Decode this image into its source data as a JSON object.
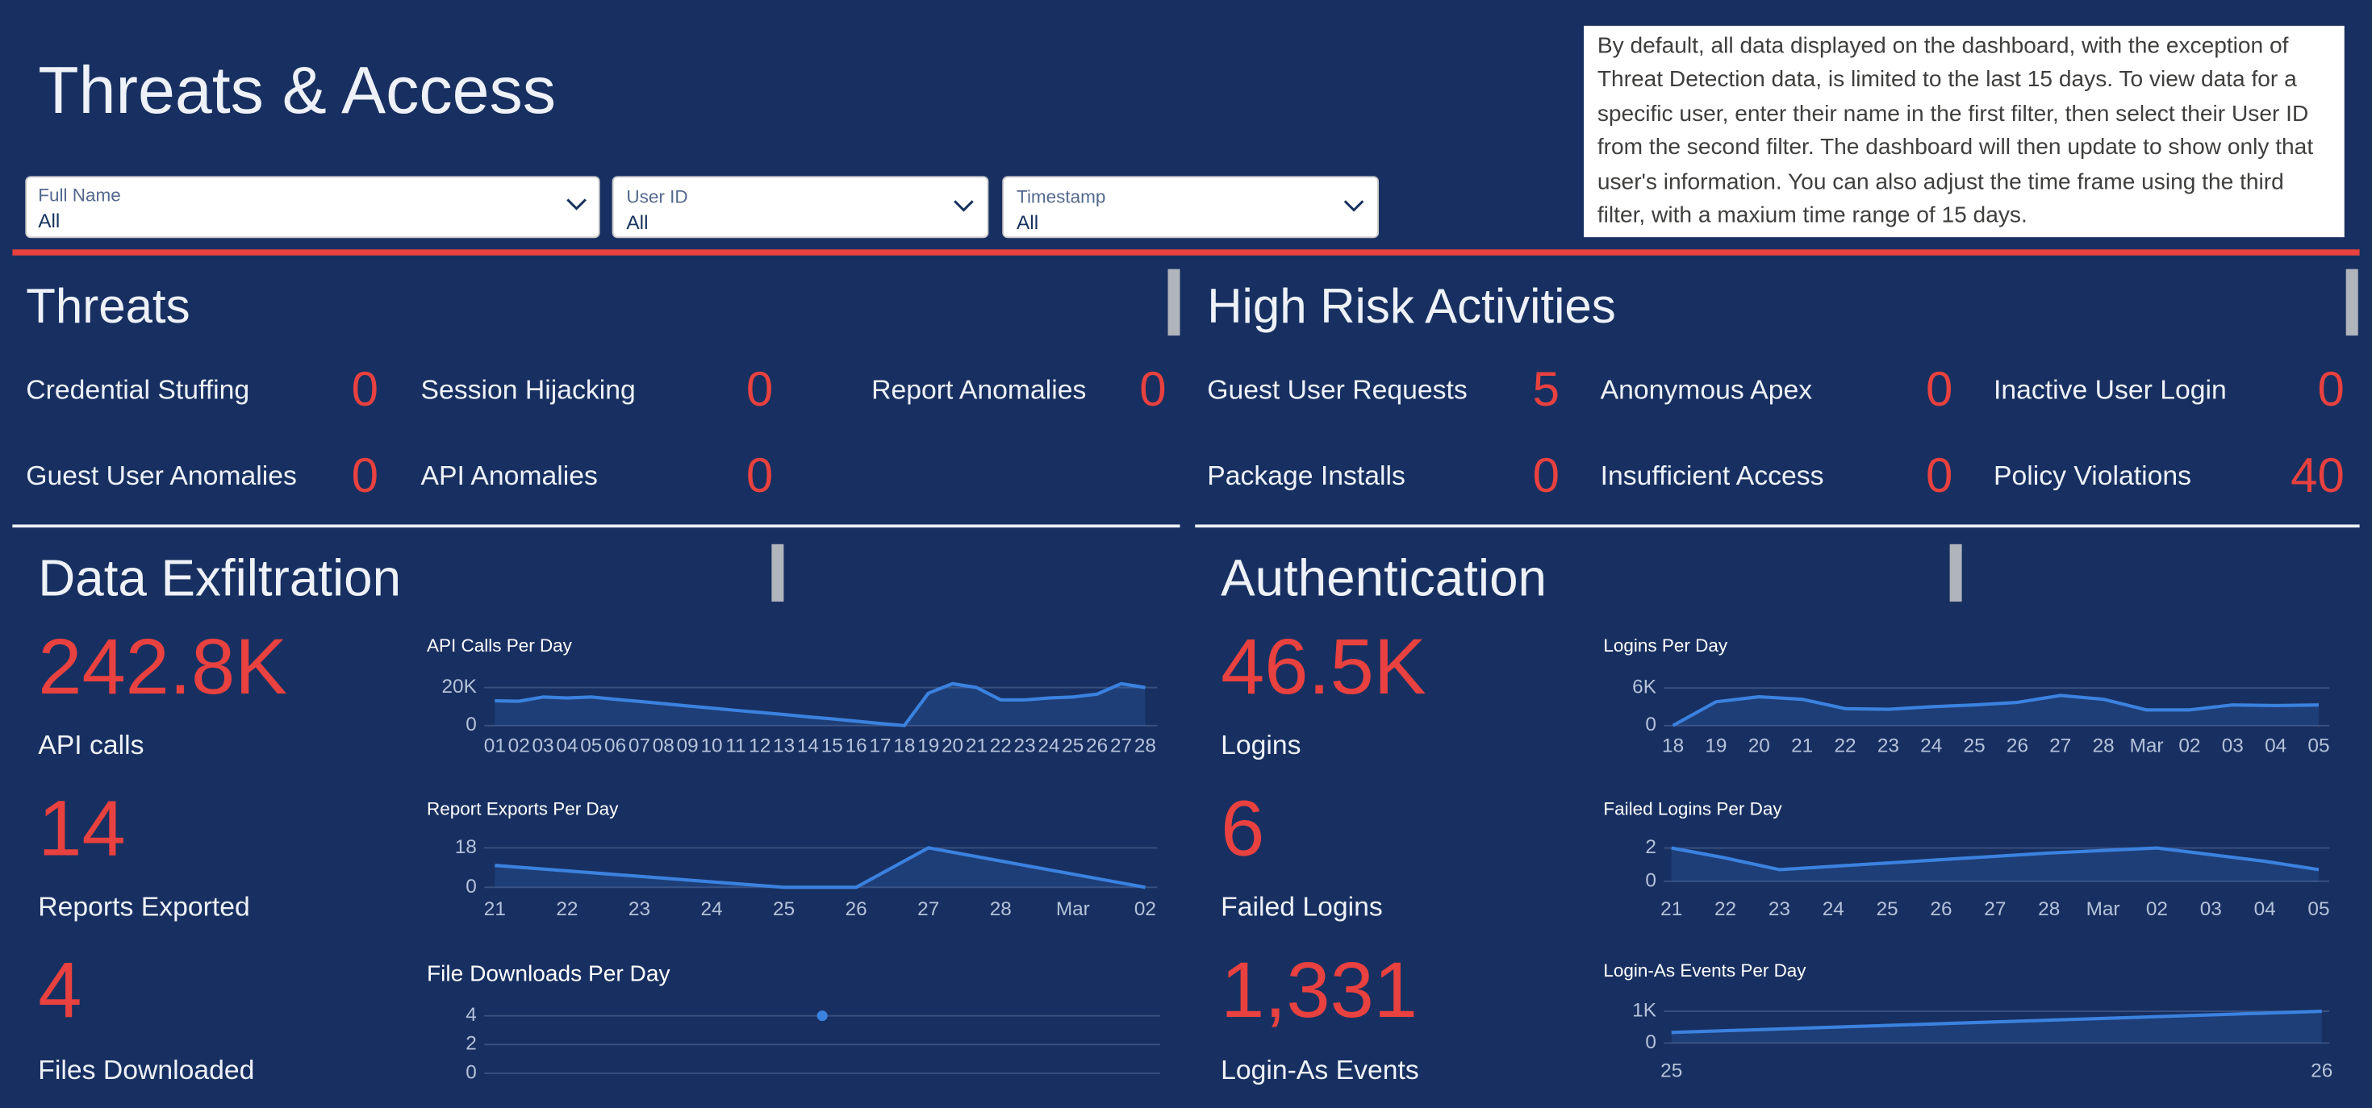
{
  "header": {
    "title": "Threats & Access",
    "filters": [
      {
        "label": "Full Name",
        "value": "All"
      },
      {
        "label": "User ID",
        "value": "All"
      },
      {
        "label": "Timestamp",
        "value": "All"
      }
    ],
    "info": "By default, all data displayed on the dashboard, with the exception of Threat Detection data, is limited to the last 15 days. To view data for a specific user, enter their name in the first filter, then select their User ID from the second filter. The dashboard will then update to show only that user's information. You can also adjust the time frame using the third filter, with a maxium time range of 15 days."
  },
  "threats": {
    "title": "Threats",
    "metrics": [
      {
        "label": "Credential Stuffing",
        "value": "0"
      },
      {
        "label": "Session Hijacking",
        "value": "0"
      },
      {
        "label": "Report Anomalies",
        "value": "0"
      },
      {
        "label": "Guest User Anomalies",
        "value": "0"
      },
      {
        "label": "API Anomalies",
        "value": "0"
      }
    ]
  },
  "high_risk": {
    "title": "High Risk Activities",
    "metrics": [
      {
        "label": "Guest User Requests",
        "value": "5"
      },
      {
        "label": "Anonymous Apex",
        "value": "0"
      },
      {
        "label": "Inactive User Login",
        "value": "0"
      },
      {
        "label": "Package Installs",
        "value": "0"
      },
      {
        "label": "Insufficient Access",
        "value": "0"
      },
      {
        "label": "Policy Violations",
        "value": "40"
      }
    ]
  },
  "data_exfiltration": {
    "title": "Data Exfiltration",
    "kpis": [
      {
        "value": "242.8K",
        "label": "API calls"
      },
      {
        "value": "14",
        "label": "Reports Exported"
      },
      {
        "value": "4",
        "label": "Files Downloaded"
      }
    ]
  },
  "authentication": {
    "title": "Authentication",
    "kpis": [
      {
        "value": "46.5K",
        "label": "Logins"
      },
      {
        "value": "6",
        "label": "Failed Logins"
      },
      {
        "value": "1,331",
        "label": "Login-As Events"
      }
    ]
  },
  "chart_data": [
    {
      "type": "line",
      "title": "API Calls Per Day",
      "color": "#3b82e0",
      "categories": [
        "01",
        "02",
        "03",
        "04",
        "05",
        "06",
        "07",
        "08",
        "09",
        "10",
        "11",
        "12",
        "13",
        "14",
        "15",
        "16",
        "17",
        "18",
        "19",
        "20",
        "21",
        "22",
        "23",
        "24",
        "25",
        "26",
        "27",
        "28"
      ],
      "values": [
        13000,
        12800,
        15000,
        14500,
        15000,
        13800,
        12700,
        11500,
        10300,
        9200,
        8000,
        6900,
        5800,
        4600,
        3500,
        2300,
        1100,
        0,
        17000,
        22000,
        20000,
        13500,
        13500,
        14500,
        15000,
        16500,
        22000,
        20000
      ],
      "ylim": [
        0,
        27000
      ],
      "yticks": [
        0,
        {
          "value": 20000,
          "label": "20K"
        }
      ]
    },
    {
      "type": "line",
      "title": "Report Exports Per Day",
      "color": "#3b82e0",
      "categories": [
        "21",
        "22",
        "23",
        "24",
        "25",
        "26",
        "27",
        "28",
        "Mar",
        "02"
      ],
      "values": [
        10,
        7.5,
        5,
        2.5,
        0,
        0,
        18,
        12,
        6,
        0
      ],
      "ylim": [
        0,
        20
      ],
      "yticks": [
        0,
        18
      ]
    },
    {
      "type": "line",
      "title": "File Downloads Per Day",
      "color": "#3b82e0",
      "categories": [
        null
      ],
      "values": [
        4
      ],
      "ylim": [
        0,
        5
      ],
      "yticks": [
        0,
        2,
        4
      ]
    },
    {
      "type": "line",
      "title": "Logins Per Day",
      "color": "#3b82e0",
      "categories": [
        "18",
        "19",
        "20",
        "21",
        "22",
        "23",
        "24",
        "25",
        "26",
        "27",
        "28",
        "Mar",
        "02",
        "03",
        "04",
        "05"
      ],
      "values": [
        0,
        3800,
        4600,
        4200,
        2700,
        2600,
        3000,
        3300,
        3700,
        4800,
        4200,
        2500,
        2500,
        3300,
        3200,
        3300
      ],
      "ylim": [
        0,
        7000
      ],
      "yticks": [
        0,
        {
          "value": 6000,
          "label": "6K"
        }
      ]
    },
    {
      "type": "line",
      "title": "Failed Logins Per Day",
      "color": "#3b82e0",
      "categories": [
        "21",
        "22",
        "23",
        "24",
        "25",
        "26",
        "27",
        "28",
        "Mar",
        "02",
        "03",
        "04",
        "05"
      ],
      "values": [
        2,
        1.4,
        0.7,
        0.9,
        1.1,
        1.3,
        1.5,
        1.7,
        1.85,
        2,
        1.6,
        1.2,
        0.7
      ],
      "ylim": [
        0,
        2.5
      ],
      "yticks": [
        0,
        2
      ]
    },
    {
      "type": "line",
      "title": "Login-As Events Per Day",
      "color": "#3b82e0",
      "categories": [
        "25",
        "26"
      ],
      "values": [
        331,
        1000
      ],
      "ylim": [
        0,
        1400
      ],
      "yticks": [
        0,
        {
          "value": 1000,
          "label": "1K"
        }
      ]
    }
  ]
}
